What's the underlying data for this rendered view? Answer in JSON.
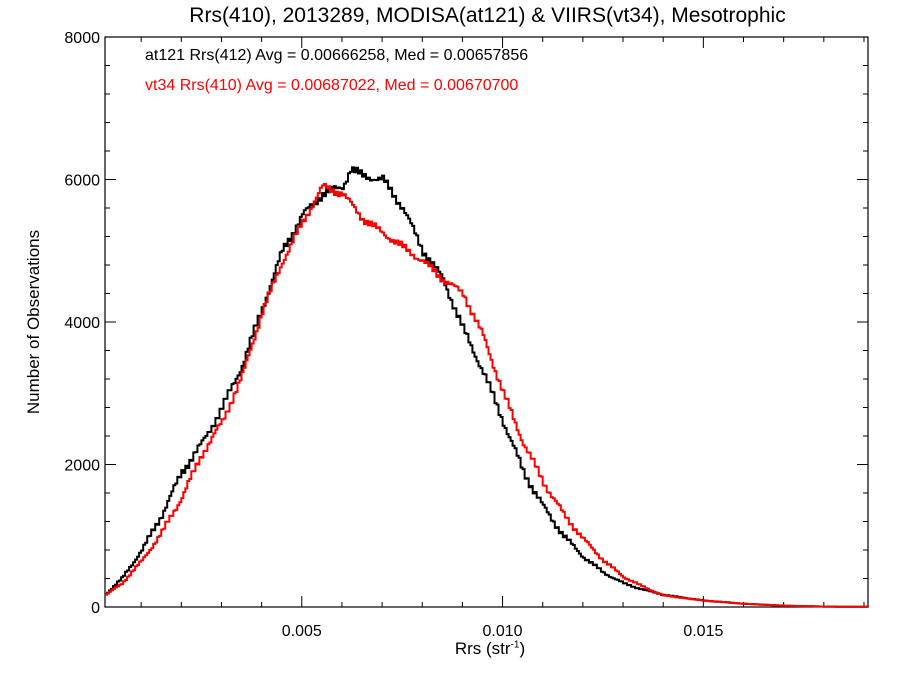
{
  "title": "Rrs(410), 2013289, MODISA(at121) & VIIRS(vt34), Mesotrophic",
  "legend": [
    {
      "text": "at121 Rrs(412) Avg = 0.00666258, Med = 0.00657856",
      "color": "#000000"
    },
    {
      "text": "vt34 Rrs(410) Avg = 0.00687022, Med = 0.00670700",
      "color": "#ff0000"
    }
  ],
  "chart_data": {
    "type": "line",
    "title": "Rrs(410), 2013289, MODISA(at121) & VIIRS(vt34), Mesotrophic",
    "xlabel_base": "Rrs (str",
    "xlabel_sup": "-1",
    "xlabel_end": ")",
    "ylabel": "Number of Observations",
    "xlim": [
      0.0001,
      0.0191
    ],
    "ylim": [
      0,
      8000
    ],
    "xticks": [
      {
        "value": 0.005,
        "label": "0.005"
      },
      {
        "value": 0.01,
        "label": "0.010"
      },
      {
        "value": 0.015,
        "label": "0.015"
      }
    ],
    "yticks": [
      {
        "value": 0,
        "label": "0"
      },
      {
        "value": 2000,
        "label": "2000"
      },
      {
        "value": 4000,
        "label": "4000"
      },
      {
        "value": 6000,
        "label": "6000"
      },
      {
        "value": 8000,
        "label": "8000"
      }
    ],
    "grid": false,
    "legend_position": "top-left",
    "series": [
      {
        "name": "at121 Rrs(412)",
        "color": "#000000",
        "points": [
          [
            0.0001,
            180
          ],
          [
            0.0005,
            400
          ],
          [
            0.001,
            800
          ],
          [
            0.0015,
            1300
          ],
          [
            0.002,
            1900
          ],
          [
            0.0025,
            2300
          ],
          [
            0.003,
            2800
          ],
          [
            0.0035,
            3400
          ],
          [
            0.004,
            4200
          ],
          [
            0.0045,
            5000
          ],
          [
            0.005,
            5500
          ],
          [
            0.0055,
            5800
          ],
          [
            0.006,
            5900
          ],
          [
            0.0062,
            6150
          ],
          [
            0.0065,
            6050
          ],
          [
            0.007,
            6000
          ],
          [
            0.0075,
            5600
          ],
          [
            0.008,
            5000
          ],
          [
            0.0085,
            4600
          ],
          [
            0.009,
            3900
          ],
          [
            0.0095,
            3300
          ],
          [
            0.01,
            2600
          ],
          [
            0.0105,
            1900
          ],
          [
            0.011,
            1400
          ],
          [
            0.0115,
            1000
          ],
          [
            0.012,
            700
          ],
          [
            0.0125,
            480
          ],
          [
            0.013,
            330
          ],
          [
            0.0135,
            240
          ],
          [
            0.014,
            170
          ],
          [
            0.015,
            90
          ],
          [
            0.016,
            45
          ],
          [
            0.017,
            18
          ],
          [
            0.018,
            6
          ],
          [
            0.0191,
            2
          ]
        ]
      },
      {
        "name": "vt34 Rrs(410)",
        "color": "#ff0000",
        "points": [
          [
            0.0001,
            170
          ],
          [
            0.0005,
            330
          ],
          [
            0.001,
            650
          ],
          [
            0.0015,
            1050
          ],
          [
            0.002,
            1550
          ],
          [
            0.0025,
            2150
          ],
          [
            0.003,
            2600
          ],
          [
            0.0035,
            3250
          ],
          [
            0.004,
            4150
          ],
          [
            0.0045,
            4850
          ],
          [
            0.005,
            5400
          ],
          [
            0.0055,
            5900
          ],
          [
            0.006,
            5800
          ],
          [
            0.0065,
            5450
          ],
          [
            0.007,
            5250
          ],
          [
            0.0075,
            5050
          ],
          [
            0.008,
            4850
          ],
          [
            0.0085,
            4600
          ],
          [
            0.009,
            4400
          ],
          [
            0.0095,
            3800
          ],
          [
            0.01,
            3000
          ],
          [
            0.0105,
            2300
          ],
          [
            0.011,
            1750
          ],
          [
            0.0115,
            1300
          ],
          [
            0.012,
            950
          ],
          [
            0.0125,
            650
          ],
          [
            0.013,
            420
          ],
          [
            0.0135,
            280
          ],
          [
            0.014,
            160
          ],
          [
            0.015,
            90
          ],
          [
            0.016,
            45
          ],
          [
            0.017,
            18
          ],
          [
            0.018,
            6
          ],
          [
            0.0191,
            2
          ]
        ]
      }
    ]
  }
}
